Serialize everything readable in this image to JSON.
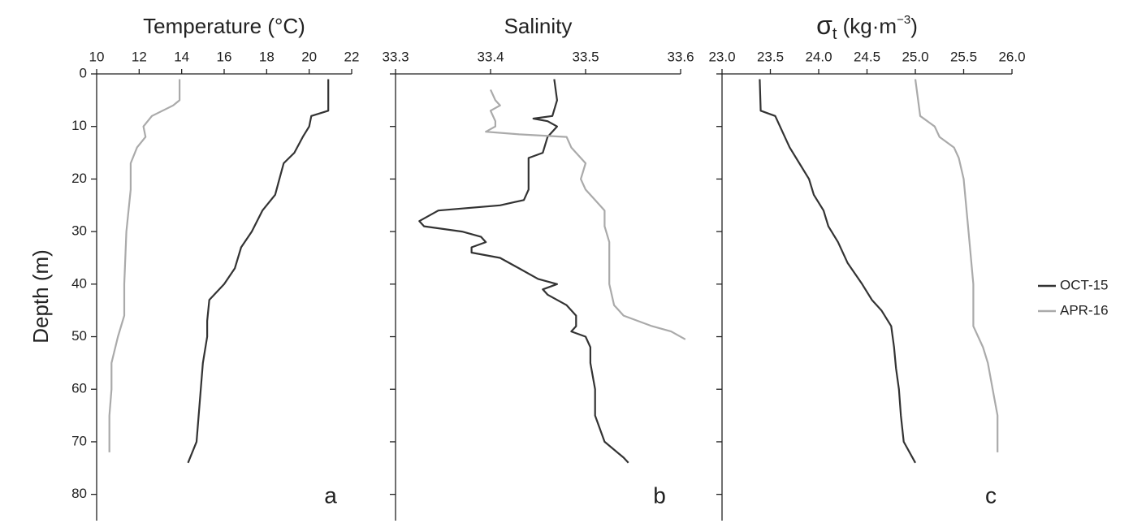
{
  "chart_data": [
    {
      "type": "line",
      "title": "Temperature (°C)",
      "y_label": "Depth (m)",
      "annotation": "a",
      "xlim": [
        10,
        22
      ],
      "xticks": [
        10,
        12,
        14,
        16,
        18,
        20,
        22
      ],
      "ylim": [
        0,
        85
      ],
      "yticks": [
        0,
        10,
        20,
        30,
        40,
        50,
        60,
        70,
        80
      ],
      "y_inverted": true,
      "show_ytick_labels": true,
      "series": [
        {
          "color": "#333333",
          "x": [
            20.9,
            20.9,
            20.1,
            20.0,
            19.7,
            19.3,
            18.8,
            18.6,
            18.4,
            17.8,
            17.3,
            16.8,
            16.5,
            16.0,
            15.3,
            15.2,
            15.2,
            15.0,
            14.9,
            14.8,
            14.7,
            14.3
          ],
          "values": [
            1,
            7,
            8,
            10,
            12,
            15,
            17,
            20,
            23,
            26,
            30,
            33,
            37,
            40,
            43,
            47,
            50,
            55,
            60,
            65,
            70,
            74
          ]
        },
        {
          "color": "#aaaaaa",
          "x": [
            13.9,
            13.9,
            13.6,
            12.6,
            12.2,
            12.3,
            11.9,
            11.6,
            11.6,
            11.4,
            11.3,
            11.3,
            11.0,
            10.7,
            10.7,
            10.6,
            10.6
          ],
          "values": [
            1,
            5,
            6,
            8,
            10,
            12,
            14,
            17,
            22,
            30,
            40,
            46,
            50,
            55,
            60,
            65,
            72
          ]
        }
      ]
    },
    {
      "type": "line",
      "title": "Salinity",
      "annotation": "b",
      "xlim": [
        33.3,
        33.6
      ],
      "xticks": [
        33.3,
        33.4,
        33.5,
        33.6
      ],
      "ylim": [
        0,
        85
      ],
      "yticks": [
        0,
        10,
        20,
        30,
        40,
        50,
        60,
        70,
        80
      ],
      "y_inverted": true,
      "show_ytick_labels": false,
      "series": [
        {
          "color": "#333333",
          "x": [
            33.467,
            33.47,
            33.465,
            33.445,
            33.46,
            33.47,
            33.46,
            33.455,
            33.44,
            33.44,
            33.44,
            33.435,
            33.41,
            33.345,
            33.325,
            33.33,
            33.37,
            33.39,
            33.395,
            33.38,
            33.38,
            33.41,
            33.43,
            33.45,
            33.47,
            33.455,
            33.46,
            33.48,
            33.49,
            33.49,
            33.485,
            33.5,
            33.505,
            33.505,
            33.51,
            33.51,
            33.52,
            33.54,
            33.545
          ],
          "values": [
            1,
            5,
            8,
            8.5,
            9,
            10,
            12,
            15,
            16,
            20,
            22,
            24,
            25,
            26,
            28,
            29,
            30,
            31,
            32,
            33,
            34,
            35,
            37,
            39,
            40,
            41,
            42,
            44,
            46,
            48,
            49,
            50,
            52,
            55,
            60,
            65,
            70,
            73,
            74
          ]
        },
        {
          "color": "#aaaaaa",
          "x": [
            33.4,
            33.405,
            33.41,
            33.4,
            33.405,
            33.405,
            33.395,
            33.43,
            33.48,
            33.485,
            33.5,
            33.495,
            33.5,
            33.51,
            33.52,
            33.52,
            33.525,
            33.525,
            33.525,
            33.53,
            33.54,
            33.57,
            33.59,
            33.605
          ],
          "values": [
            3,
            5,
            6,
            7,
            9,
            10,
            11,
            11.5,
            12,
            14,
            17,
            20,
            22,
            24,
            26,
            29,
            32,
            36,
            40,
            44,
            46,
            48,
            49,
            50.5
          ]
        }
      ]
    },
    {
      "type": "line",
      "title": {
        "main": "σ",
        "sub": "t",
        "rest": " (kg·m",
        "sup": "−3",
        "end": ")"
      },
      "annotation": "c",
      "xlim": [
        23,
        26
      ],
      "xticks": [
        {
          "value": 23,
          "label": "23.0"
        },
        23.5,
        {
          "value": 24,
          "label": "24.0"
        },
        24.5,
        {
          "value": 25,
          "label": "25.0"
        },
        25.5,
        {
          "value": 26,
          "label": "26.0"
        }
      ],
      "ylim": [
        0,
        85
      ],
      "yticks": [
        0,
        10,
        20,
        30,
        40,
        50,
        60,
        70,
        80
      ],
      "y_inverted": true,
      "show_ytick_labels": false,
      "legend": "right",
      "series": [
        {
          "name": "OCT-15",
          "color": "#333333",
          "x": [
            23.39,
            23.4,
            23.55,
            23.6,
            23.65,
            23.7,
            23.8,
            23.9,
            23.95,
            24.05,
            24.1,
            24.2,
            24.3,
            24.45,
            24.55,
            24.65,
            24.75,
            24.78,
            24.8,
            24.83,
            24.85,
            24.88,
            25.0
          ],
          "values": [
            1,
            7,
            8,
            10,
            12,
            14,
            17,
            20,
            23,
            26,
            29,
            32,
            36,
            40,
            43,
            45,
            48,
            52,
            56,
            60,
            65,
            70,
            74
          ]
        },
        {
          "name": "APR-16",
          "color": "#aaaaaa",
          "x": [
            25.0,
            25.05,
            25.2,
            25.25,
            25.4,
            25.45,
            25.5,
            25.55,
            25.6,
            25.6,
            25.7,
            25.75,
            25.8,
            25.85,
            25.85
          ],
          "values": [
            1,
            8,
            10,
            12,
            14,
            16,
            20,
            30,
            40,
            48,
            52,
            55,
            60,
            65,
            72
          ]
        }
      ]
    }
  ]
}
